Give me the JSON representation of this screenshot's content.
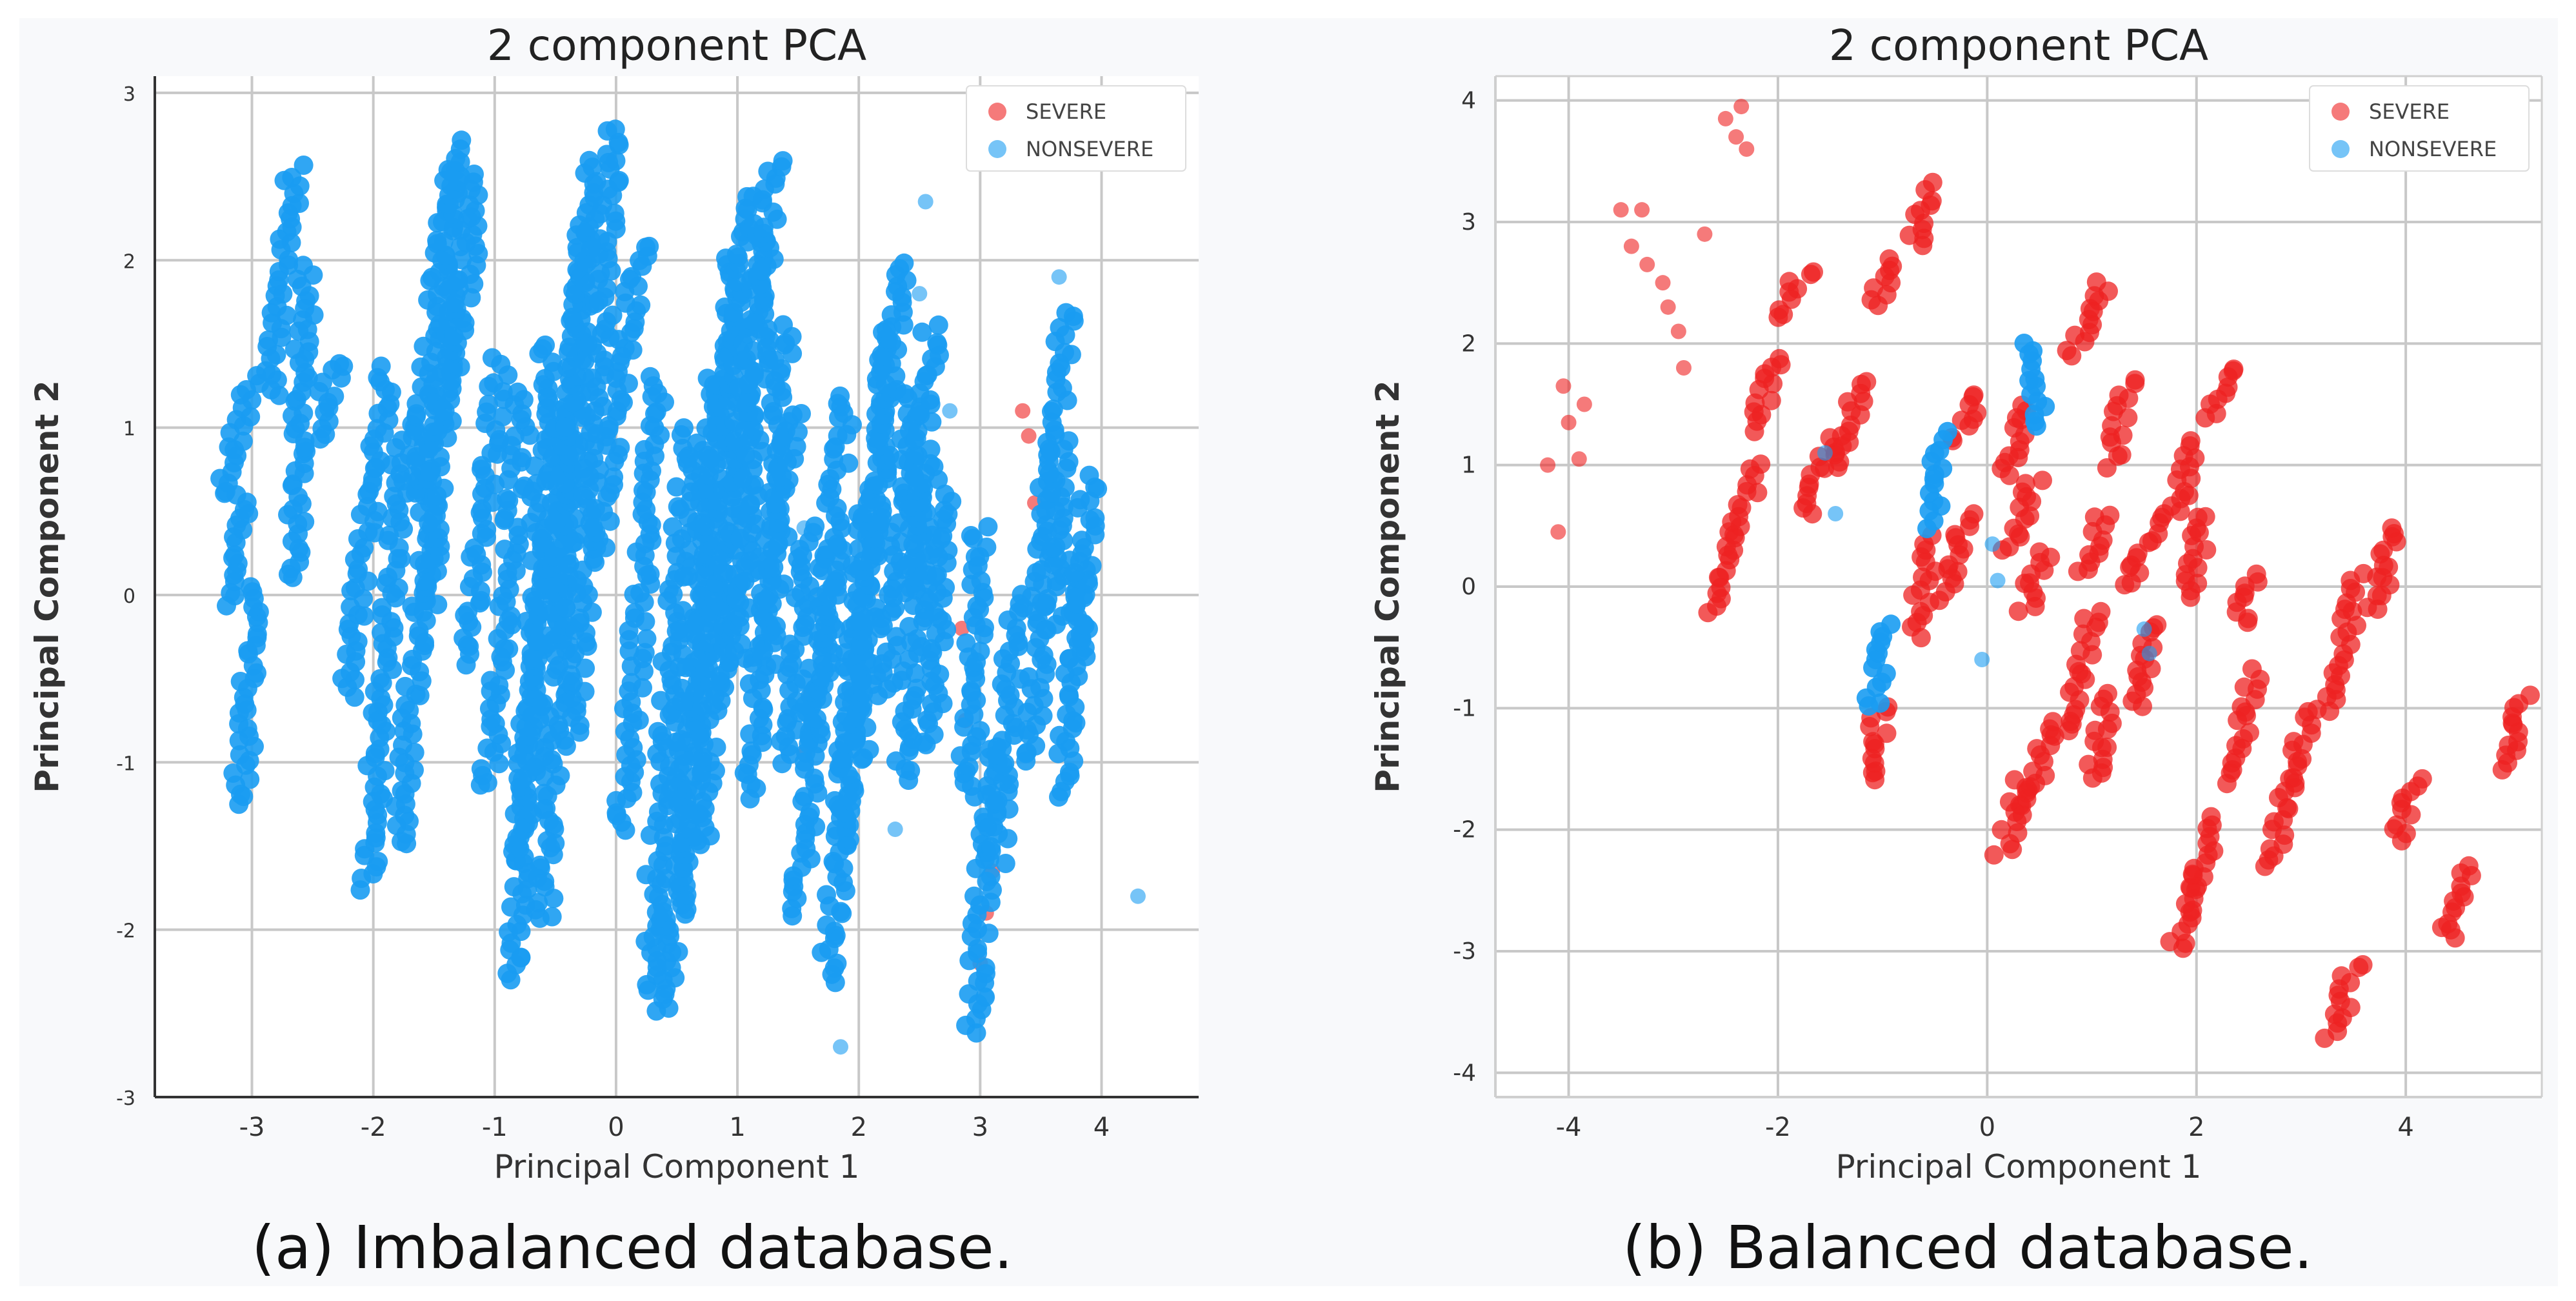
{
  "figure": {
    "captions": [
      "(a) Imbalanced database.",
      "(b) Balanced database."
    ]
  },
  "chart_data": [
    {
      "type": "scatter",
      "title": "2 component PCA",
      "xlabel": "Principal Component 1",
      "ylabel": "Principal Component 2",
      "xlim": [
        -3.8,
        4.8
      ],
      "ylim": [
        -3.0,
        3.1
      ],
      "xticks": [
        -3,
        -2,
        -1,
        0,
        1,
        2,
        3,
        4
      ],
      "yticks": [
        -3,
        -2,
        -1,
        0,
        1,
        2,
        3
      ],
      "grid": true,
      "legend_position": "top-right",
      "colors": {
        "SEVERE": "#ee2222",
        "NONSEVERE": "#1a9cf2"
      },
      "series": [
        {
          "name": "SEVERE",
          "points": [
            [
              3.35,
              1.1
            ],
            [
              3.4,
              0.95
            ],
            [
              3.45,
              0.55
            ],
            [
              1.55,
              -0.95
            ],
            [
              1.6,
              -0.6
            ],
            [
              2.85,
              -0.2
            ],
            [
              2.88,
              -0.75
            ],
            [
              3.1,
              -1.65
            ],
            [
              3.0,
              -2.2
            ],
            [
              3.05,
              -1.9
            ]
          ]
        },
        {
          "name": "NONSEVERE",
          "strokes": [
            {
              "x0": -3.25,
              "y0": 0.6,
              "x1": -3.0,
              "y1": 1.3
            },
            {
              "x0": -3.2,
              "y0": -0.05,
              "x1": -3.05,
              "y1": 0.6
            },
            {
              "x0": -3.1,
              "y0": -1.25,
              "x1": -2.95,
              "y1": 0.05
            },
            {
              "x0": -2.85,
              "y0": 1.2,
              "x1": -2.65,
              "y1": 2.55
            },
            {
              "x0": -2.65,
              "y0": 0.1,
              "x1": -2.55,
              "y1": 1.95
            },
            {
              "x0": -2.5,
              "y0": 0.9,
              "x1": -2.3,
              "y1": 1.4
            },
            {
              "x0": -2.2,
              "y0": -0.6,
              "x1": -1.9,
              "y1": 1.35
            },
            {
              "x0": -2.05,
              "y0": -1.75,
              "x1": -1.75,
              "y1": 1.0
            },
            {
              "x0": -1.8,
              "y0": -1.5,
              "x1": -1.5,
              "y1": 0.8
            },
            {
              "x0": -1.65,
              "y0": 0.6,
              "x1": -1.35,
              "y1": 2.55
            },
            {
              "x0": -1.55,
              "y0": -0.1,
              "x1": -1.3,
              "y1": 2.7
            },
            {
              "x0": -1.45,
              "y0": 0.9,
              "x1": -1.1,
              "y1": 2.5
            },
            {
              "x0": -1.25,
              "y0": -0.4,
              "x1": -0.95,
              "y1": 1.4
            },
            {
              "x0": -1.05,
              "y0": -1.15,
              "x1": -0.75,
              "y1": 1.2
            },
            {
              "x0": -0.85,
              "y0": -2.3,
              "x1": -0.55,
              "y1": 1.5
            },
            {
              "x0": -0.8,
              "y0": -1.6,
              "x1": -0.45,
              "y1": 1.1
            },
            {
              "x0": -0.6,
              "y0": -1.95,
              "x1": -0.25,
              "y1": 2.2
            },
            {
              "x0": -0.5,
              "y0": -0.3,
              "x1": -0.2,
              "y1": 2.6
            },
            {
              "x0": -0.35,
              "y0": -0.9,
              "x1": 0.0,
              "y1": 2.8
            },
            {
              "x0": -0.15,
              "y0": 0.3,
              "x1": 0.2,
              "y1": 2.1
            },
            {
              "x0": 0.05,
              "y0": -1.4,
              "x1": 0.35,
              "y1": 1.3
            },
            {
              "x0": 0.25,
              "y0": -2.35,
              "x1": 0.6,
              "y1": 1.0
            },
            {
              "x0": 0.4,
              "y0": -2.5,
              "x1": 0.8,
              "y1": 1.3
            },
            {
              "x0": 0.55,
              "y0": -1.9,
              "x1": 0.95,
              "y1": 2.0
            },
            {
              "x0": 0.7,
              "y0": -1.5,
              "x1": 1.1,
              "y1": 2.4
            },
            {
              "x0": 0.85,
              "y0": -0.7,
              "x1": 1.2,
              "y1": 2.2
            },
            {
              "x0": 1.0,
              "y0": -0.4,
              "x1": 1.3,
              "y1": 2.6
            },
            {
              "x0": 1.1,
              "y0": -1.2,
              "x1": 1.4,
              "y1": 1.6
            },
            {
              "x0": 1.25,
              "y0": -0.4,
              "x1": 1.45,
              "y1": 1.1
            },
            {
              "x0": 1.4,
              "y0": -1.0,
              "x1": 1.6,
              "y1": 0.4
            },
            {
              "x0": 1.5,
              "y0": -1.9,
              "x1": 1.8,
              "y1": 0.3
            },
            {
              "x0": 1.6,
              "y0": -0.9,
              "x1": 1.9,
              "y1": 1.2
            },
            {
              "x0": 1.75,
              "y0": -2.3,
              "x1": 2.0,
              "y1": -0.2
            },
            {
              "x0": 1.85,
              "y0": -1.5,
              "x1": 2.05,
              "y1": 0.5
            },
            {
              "x0": 2.0,
              "y0": -1.0,
              "x1": 2.25,
              "y1": 1.6
            },
            {
              "x0": 2.1,
              "y0": 0.2,
              "x1": 2.35,
              "y1": 2.0
            },
            {
              "x0": 2.2,
              "y0": -0.6,
              "x1": 2.45,
              "y1": 1.2
            },
            {
              "x0": 2.35,
              "y0": -1.1,
              "x1": 2.6,
              "y1": 0.8
            },
            {
              "x0": 2.45,
              "y0": 0.0,
              "x1": 2.6,
              "y1": 1.6
            },
            {
              "x0": 2.6,
              "y0": -0.9,
              "x1": 2.7,
              "y1": 0.6
            },
            {
              "x0": 2.95,
              "y0": -2.6,
              "x1": 3.1,
              "y1": -0.9
            },
            {
              "x0": 2.9,
              "y0": -1.2,
              "x1": 3.0,
              "y1": 0.4
            },
            {
              "x0": 3.15,
              "y0": -1.6,
              "x1": 3.3,
              "y1": 0.0
            },
            {
              "x0": 3.45,
              "y0": -1.0,
              "x1": 3.55,
              "y1": 0.9
            },
            {
              "x0": 3.6,
              "y0": -0.2,
              "x1": 3.7,
              "y1": 1.7
            },
            {
              "x0": 3.7,
              "y0": -1.2,
              "x1": 3.8,
              "y1": 0.2
            },
            {
              "x0": 3.8,
              "y0": -0.4,
              "x1": 3.9,
              "y1": 0.7
            }
          ],
          "points": [
            [
              4.3,
              -1.8
            ],
            [
              2.55,
              2.35
            ],
            [
              2.5,
              1.8
            ],
            [
              2.75,
              1.1
            ],
            [
              3.65,
              1.9
            ],
            [
              1.55,
              0.4
            ],
            [
              1.85,
              -2.7
            ],
            [
              2.3,
              -1.4
            ],
            [
              3.05,
              -2.4
            ]
          ]
        }
      ]
    },
    {
      "type": "scatter",
      "title": "2 component PCA",
      "xlabel": "Principal Component 1",
      "ylabel": "Principal Component 2",
      "xlim": [
        -4.7,
        5.3
      ],
      "ylim": [
        -4.2,
        4.2
      ],
      "xticks": [
        -4,
        -2,
        0,
        2,
        4
      ],
      "yticks": [
        -4,
        -3,
        -2,
        -1,
        0,
        1,
        2,
        3,
        4
      ],
      "grid": true,
      "legend_position": "top-right",
      "colors": {
        "SEVERE": "#ee2222",
        "NONSEVERE": "#1a9cf2"
      },
      "series": [
        {
          "name": "SEVERE",
          "strokes": [
            {
              "x0": -2.6,
              "y0": -0.2,
              "x1": -2.4,
              "y1": 0.4
            },
            {
              "x0": -2.4,
              "y0": 0.4,
              "x1": -2.2,
              "y1": 1.0
            },
            {
              "x0": -2.2,
              "y0": 1.3,
              "x1": -2.0,
              "y1": 1.9
            },
            {
              "x0": -1.95,
              "y0": 2.2,
              "x1": -1.75,
              "y1": 2.6
            },
            {
              "x0": -1.7,
              "y0": 0.6,
              "x1": -1.5,
              "y1": 1.2
            },
            {
              "x0": -1.4,
              "y0": 1.0,
              "x1": -1.2,
              "y1": 1.7
            },
            {
              "x0": -1.1,
              "y0": 2.3,
              "x1": -0.9,
              "y1": 2.7
            },
            {
              "x0": -0.7,
              "y0": 2.8,
              "x1": -0.5,
              "y1": 3.3
            },
            {
              "x0": -0.7,
              "y0": -0.4,
              "x1": -0.5,
              "y1": 0.4
            },
            {
              "x0": -0.4,
              "y0": -0.1,
              "x1": -0.2,
              "y1": 0.6
            },
            {
              "x0": -0.3,
              "y0": 1.2,
              "x1": -0.1,
              "y1": 1.6
            },
            {
              "x0": 0.2,
              "y0": 0.3,
              "x1": 0.45,
              "y1": 0.9
            },
            {
              "x0": 0.2,
              "y0": 0.9,
              "x1": 0.35,
              "y1": 1.5
            },
            {
              "x0": 0.35,
              "y0": -0.2,
              "x1": 0.55,
              "y1": 0.3
            },
            {
              "x0": 0.8,
              "y0": 1.9,
              "x1": 1.1,
              "y1": 2.5
            },
            {
              "x0": 0.9,
              "y0": 0.1,
              "x1": 1.1,
              "y1": 0.6
            },
            {
              "x0": 0.8,
              "y0": -1.2,
              "x1": 1.0,
              "y1": -0.2
            },
            {
              "x0": 0.15,
              "y0": -2.2,
              "x1": 0.35,
              "y1": -1.6
            },
            {
              "x0": 0.4,
              "y0": -1.8,
              "x1": 0.65,
              "y1": -1.1
            },
            {
              "x0": 1.0,
              "y0": -1.6,
              "x1": 1.2,
              "y1": -0.9
            },
            {
              "x0": 1.2,
              "y0": 1.0,
              "x1": 1.35,
              "y1": 1.7
            },
            {
              "x0": 1.4,
              "y0": 0.0,
              "x1": 1.6,
              "y1": 0.6
            },
            {
              "x0": 1.4,
              "y0": -1.0,
              "x1": 1.6,
              "y1": -0.3
            },
            {
              "x0": 1.8,
              "y0": 0.6,
              "x1": 2.0,
              "y1": 1.2
            },
            {
              "x0": 1.9,
              "y0": -0.1,
              "x1": 2.1,
              "y1": 0.6
            },
            {
              "x0": 2.35,
              "y0": -1.6,
              "x1": 2.55,
              "y1": -0.7
            },
            {
              "x0": 2.1,
              "y0": 1.4,
              "x1": 2.3,
              "y1": 1.8
            },
            {
              "x0": 2.9,
              "y0": -1.6,
              "x1": 3.1,
              "y1": -1.0
            },
            {
              "x0": 3.3,
              "y0": -1.0,
              "x1": 3.55,
              "y1": 0.1
            },
            {
              "x0": 3.7,
              "y0": -0.2,
              "x1": 3.9,
              "y1": 0.5
            },
            {
              "x0": 3.9,
              "y0": -2.1,
              "x1": 4.1,
              "y1": -1.6
            },
            {
              "x0": 4.4,
              "y0": -2.9,
              "x1": 4.6,
              "y1": -2.3
            },
            {
              "x0": 4.95,
              "y0": -1.5,
              "x1": 5.1,
              "y1": -0.9
            },
            {
              "x0": 1.8,
              "y0": -3.0,
              "x1": 2.0,
              "y1": -2.4
            },
            {
              "x0": 2.0,
              "y0": -2.5,
              "x1": 2.15,
              "y1": -1.9
            },
            {
              "x0": 2.7,
              "y0": -2.3,
              "x1": 2.9,
              "y1": -1.6
            },
            {
              "x0": 3.3,
              "y0": -3.7,
              "x1": 3.5,
              "y1": -3.1
            },
            {
              "x0": 2.4,
              "y0": -0.3,
              "x1": 2.6,
              "y1": 0.1
            },
            {
              "x0": -1.15,
              "y0": -1.6,
              "x1": -1.0,
              "y1": -1.0
            }
          ],
          "points": [
            [
              -4.2,
              1.0
            ],
            [
              -3.9,
              1.05
            ],
            [
              -4.1,
              0.45
            ],
            [
              -4.05,
              1.65
            ],
            [
              -4.0,
              1.35
            ],
            [
              -3.85,
              1.5
            ],
            [
              -3.5,
              3.1
            ],
            [
              -3.4,
              2.8
            ],
            [
              -3.3,
              3.1
            ],
            [
              -3.25,
              2.65
            ],
            [
              -3.1,
              2.5
            ],
            [
              -3.05,
              2.3
            ],
            [
              -2.95,
              2.1
            ],
            [
              -2.9,
              1.8
            ],
            [
              -2.7,
              2.9
            ],
            [
              -2.5,
              3.85
            ],
            [
              -2.35,
              3.95
            ],
            [
              -2.3,
              3.6
            ],
            [
              -2.4,
              3.7
            ]
          ]
        },
        {
          "name": "NONSEVERE",
          "strokes": [
            {
              "x0": -1.1,
              "y0": -1.0,
              "x1": -0.95,
              "y1": -0.3
            },
            {
              "x0": -0.55,
              "y0": 0.5,
              "x1": -0.4,
              "y1": 1.25
            },
            {
              "x0": 0.55,
              "y0": 1.3,
              "x1": 0.4,
              "y1": 2.0
            }
          ],
          "points": [
            [
              -1.55,
              1.1
            ],
            [
              -1.45,
              0.6
            ],
            [
              -0.05,
              -0.6
            ],
            [
              0.05,
              0.35
            ],
            [
              0.1,
              0.05
            ],
            [
              1.5,
              -0.35
            ],
            [
              1.55,
              -0.55
            ]
          ]
        }
      ]
    }
  ]
}
